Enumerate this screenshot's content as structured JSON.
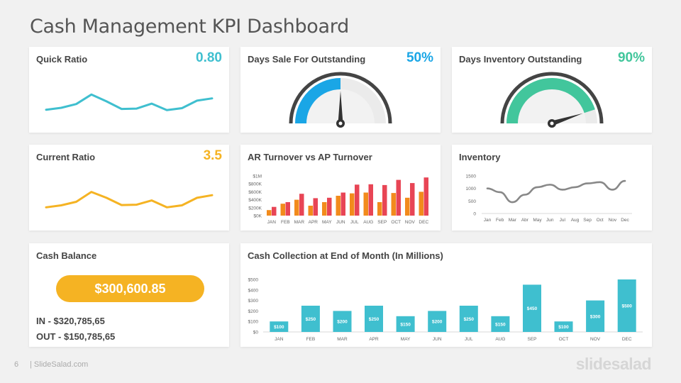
{
  "page": {
    "title": "Cash Management KPI Dashboard",
    "page_number": "6",
    "site": "| SlideSalad.com",
    "brand": "slidesalad"
  },
  "colors": {
    "teal": "#3fbfcf",
    "blue": "#1aa6e6",
    "green": "#42c69c",
    "amber": "#f5b323",
    "red": "#e84555",
    "orange": "#f28b1c"
  },
  "quick_ratio": {
    "title": "Quick Ratio",
    "value": "0.80"
  },
  "days_sale": {
    "title": "Days Sale For Outstanding",
    "value": "50%",
    "percent": 50
  },
  "days_inventory": {
    "title": "Days Inventory Outstanding",
    "value": "90%",
    "percent": 90
  },
  "current_ratio": {
    "title": "Current Ratio",
    "value": "3.5"
  },
  "ar_ap": {
    "title": "AR Turnover vs AP Turnover"
  },
  "inventory": {
    "title": "Inventory"
  },
  "cash_balance": {
    "title": "Cash Balance",
    "amount": "$300,600.85",
    "in": "IN - $320,785,65",
    "out": "OUT - $150,785,65"
  },
  "cash_collection": {
    "title": "Cash Collection  at End of Month  (In Millions)"
  },
  "chart_data": [
    {
      "id": "quick_ratio",
      "type": "line",
      "values": [
        3,
        3.5,
        4.5,
        7,
        5.2,
        3.2,
        3.3,
        4.6,
        2.9,
        3.4,
        5.4,
        6
      ]
    },
    {
      "id": "current_ratio",
      "type": "line",
      "values": [
        3.3,
        3.9,
        5,
        8,
        6.2,
        4,
        4.1,
        5.4,
        3.3,
        3.9,
        6.2,
        7
      ]
    },
    {
      "id": "days_sale_gauge",
      "type": "gauge",
      "value": 50,
      "range": [
        0,
        100
      ]
    },
    {
      "id": "days_inventory_gauge",
      "type": "gauge",
      "value": 90,
      "range": [
        0,
        100
      ]
    },
    {
      "id": "ar_ap",
      "type": "bar",
      "categories": [
        "JAN",
        "FEB",
        "MAR",
        "APR",
        "MAY",
        "JUN",
        "JUL",
        "AUG",
        "SEP",
        "OCT",
        "NOV",
        "DEC"
      ],
      "series": [
        {
          "values": [
            140,
            300,
            400,
            250,
            340,
            500,
            560,
            580,
            340,
            570,
            450,
            600
          ]
        },
        {
          "values": [
            220,
            340,
            550,
            440,
            450,
            580,
            780,
            790,
            770,
            900,
            820,
            960
          ]
        }
      ],
      "ylim": [
        0,
        1000
      ],
      "yticks": [
        0,
        200,
        400,
        600,
        800,
        1000
      ],
      "ytick_labels": [
        "$0K",
        "$200K",
        "$400K",
        "$600K",
        "$800K",
        "$1M"
      ]
    },
    {
      "id": "inventory",
      "type": "line",
      "categories": [
        "Jan",
        "Feb",
        "Mar",
        "Abr",
        "May",
        "Jun",
        "Jul",
        "Aug",
        "Sep",
        "Oct",
        "Nov",
        "Dec"
      ],
      "values": [
        1000,
        850,
        450,
        750,
        1050,
        1150,
        950,
        1050,
        1200,
        1250,
        950,
        1300
      ],
      "ylim": [
        0,
        1500
      ],
      "yticks": [
        0,
        500,
        1000,
        1500
      ]
    },
    {
      "id": "cash_collection",
      "type": "bar",
      "categories": [
        "JAN",
        "FEB",
        "MAR",
        "APR",
        "MAY",
        "JUN",
        "JUL",
        "AUG",
        "SEP",
        "OCT",
        "NOV",
        "DEC"
      ],
      "values": [
        100,
        250,
        200,
        250,
        150,
        200,
        250,
        150,
        450,
        100,
        300,
        500
      ],
      "labels": [
        "$100",
        "$250",
        "$200",
        "$250",
        "$150",
        "$200",
        "$250",
        "$150",
        "$450",
        "$100",
        "$300",
        "$500"
      ],
      "ylim": [
        0,
        500
      ],
      "yticks": [
        0,
        100,
        200,
        300,
        400,
        500
      ],
      "ytick_labels": [
        "$0",
        "$100",
        "$200",
        "$300",
        "$400",
        "$500"
      ]
    }
  ]
}
